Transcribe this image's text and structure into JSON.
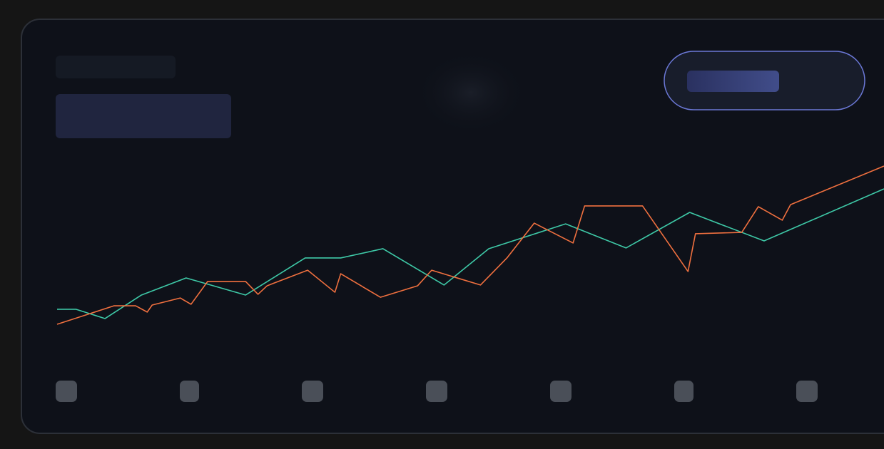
{
  "chart_data": {
    "type": "line",
    "xlim": [
      0,
      100
    ],
    "ylim": [
      0,
      100
    ],
    "series": [
      {
        "color": "#3ec9a7",
        "x": [
          0,
          2.3,
          5.8,
          10.2,
          15.6,
          22.8,
          30.0,
          34.3,
          39.4,
          46.8,
          52.2,
          61.5,
          68.8,
          76.5,
          85.5,
          100
        ],
        "values": [
          17.7,
          17.7,
          12.7,
          25.4,
          34.6,
          25.4,
          45.4,
          45.4,
          50.4,
          30.8,
          50.4,
          63.8,
          50.8,
          70,
          54.6,
          82.7
        ]
      },
      {
        "color": "#f0703f",
        "x": [
          0,
          6.9,
          9.5,
          10.9,
          11.5,
          14.9,
          16.2,
          18.2,
          22.8,
          24.3,
          25.4,
          30.3,
          33.6,
          34.3,
          39.1,
          43.6,
          45.3,
          51.2,
          54.4,
          57.7,
          62.4,
          63.8,
          70.8,
          76.3,
          77.2,
          82.8,
          84.8,
          87.7,
          88.7,
          100
        ],
        "values": [
          9.6,
          19.6,
          19.6,
          16.2,
          20,
          23.8,
          20.4,
          32.7,
          32.7,
          25.8,
          30.4,
          38.8,
          26.9,
          36.9,
          24.2,
          30.4,
          38.8,
          30.8,
          45.4,
          64.2,
          53.5,
          73.5,
          73.5,
          38.1,
          58.5,
          59.2,
          73.1,
          65.8,
          74.2,
          95
        ]
      }
    ]
  }
}
